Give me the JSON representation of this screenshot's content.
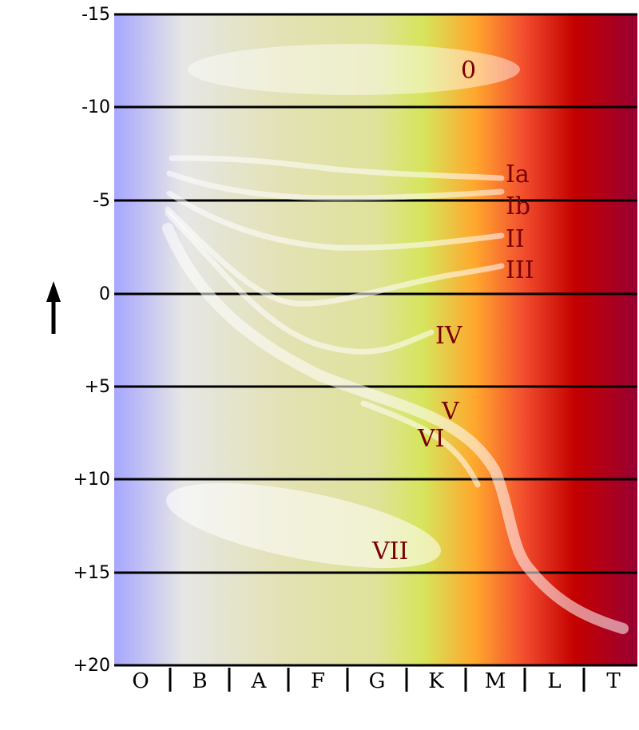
{
  "colors": {
    "spectrum_stops": [
      "#a6a6ff",
      "#e6e6e6",
      "#e3e2b5",
      "#dfe29a",
      "#d6e55c",
      "#ffa72d",
      "#f3502f",
      "#c40000",
      "#990033"
    ],
    "label_color": "#7a0000",
    "band_color": "#ffffff"
  },
  "axis": {
    "magnitude_ticks": [
      "-15",
      "-10",
      "-5",
      "0",
      "+5",
      "+10",
      "+15",
      "+20"
    ],
    "arrow_icon": "up-arrow"
  },
  "spectral_classes": [
    "O",
    "B",
    "A",
    "F",
    "G",
    "K",
    "M",
    "L",
    "T"
  ],
  "luminosity_classes": [
    "0",
    "Ia",
    "Ib",
    "II",
    "III",
    "IV",
    "V",
    "VI",
    "VII"
  ]
}
